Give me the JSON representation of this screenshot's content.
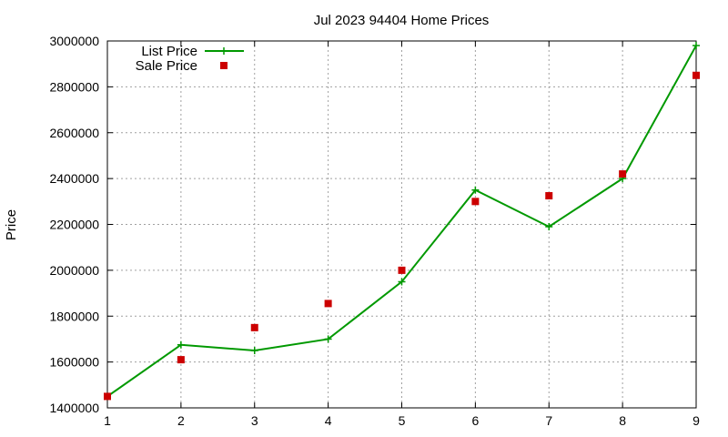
{
  "chart_data": {
    "type": "line",
    "title": "Jul 2023 94404 Home Prices",
    "xlabel": "",
    "ylabel": "Price",
    "x": [
      1,
      2,
      3,
      4,
      5,
      6,
      7,
      8,
      9
    ],
    "xlim": [
      1,
      9
    ],
    "ylim": [
      1400000,
      3000000
    ],
    "xticks": [
      1,
      2,
      3,
      4,
      5,
      6,
      7,
      8,
      9
    ],
    "yticks": [
      1400000,
      1600000,
      1800000,
      2000000,
      2200000,
      2400000,
      2600000,
      2800000,
      3000000
    ],
    "grid": true,
    "legend_position": "top-left",
    "series": [
      {
        "name": "List Price",
        "style": "line-with-plus-markers",
        "color": "#009900",
        "values": [
          1450000,
          1675000,
          1650000,
          1700000,
          1950000,
          2350000,
          2190000,
          2400000,
          2980000
        ]
      },
      {
        "name": "Sale Price",
        "style": "square-markers",
        "color": "#cc0000",
        "values": [
          1450000,
          1610000,
          1750000,
          1855000,
          2000000,
          2300000,
          2325000,
          2420000,
          2850000
        ]
      }
    ]
  }
}
